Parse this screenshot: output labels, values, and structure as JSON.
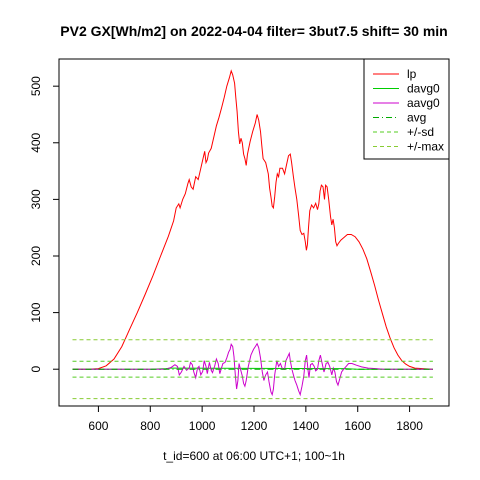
{
  "chart_data": {
    "type": "line",
    "title": "PV2 GX[Wh/m2] on 2022-04-04 filter= 3but7.5 shift= 30 min",
    "xlabel": "t_id=600 at 06:00 UTC+1; 100~1h",
    "ylabel": "",
    "xlim": [
      448,
      1952
    ],
    "ylim": [
      -65,
      548
    ],
    "x_ticks": [
      600,
      800,
      1000,
      1200,
      1400,
      1600,
      1800
    ],
    "y_ticks": [
      0,
      100,
      200,
      300,
      400,
      500
    ],
    "grid": false,
    "legend_position": "top-right",
    "legend": [
      "lp",
      "davg0",
      "aavg0",
      "avg",
      "+/-sd",
      "+/-max"
    ],
    "series": [
      {
        "name": "lp",
        "color": "#ff0000",
        "style": "solid",
        "points": [
          [
            500,
            0
          ],
          [
            560,
            0
          ],
          [
            600,
            1
          ],
          [
            630,
            6
          ],
          [
            660,
            18
          ],
          [
            690,
            40
          ],
          [
            720,
            70
          ],
          [
            750,
            100
          ],
          [
            780,
            132
          ],
          [
            810,
            165
          ],
          [
            840,
            200
          ],
          [
            870,
            235
          ],
          [
            890,
            262
          ],
          [
            900,
            285
          ],
          [
            910,
            292
          ],
          [
            915,
            285
          ],
          [
            925,
            300
          ],
          [
            935,
            310
          ],
          [
            945,
            328
          ],
          [
            950,
            335
          ],
          [
            958,
            322
          ],
          [
            965,
            318
          ],
          [
            975,
            340
          ],
          [
            985,
            335
          ],
          [
            995,
            355
          ],
          [
            1005,
            375
          ],
          [
            1010,
            385
          ],
          [
            1015,
            365
          ],
          [
            1020,
            370
          ],
          [
            1025,
            382
          ],
          [
            1035,
            390
          ],
          [
            1045,
            410
          ],
          [
            1055,
            430
          ],
          [
            1065,
            445
          ],
          [
            1075,
            462
          ],
          [
            1085,
            480
          ],
          [
            1095,
            500
          ],
          [
            1105,
            515
          ],
          [
            1112,
            527
          ],
          [
            1118,
            520
          ],
          [
            1125,
            505
          ],
          [
            1130,
            480
          ],
          [
            1135,
            455
          ],
          [
            1140,
            420
          ],
          [
            1145,
            398
          ],
          [
            1150,
            408
          ],
          [
            1155,
            400
          ],
          [
            1160,
            380
          ],
          [
            1165,
            372
          ],
          [
            1170,
            360
          ],
          [
            1175,
            380
          ],
          [
            1185,
            402
          ],
          [
            1195,
            420
          ],
          [
            1205,
            435
          ],
          [
            1212,
            450
          ],
          [
            1218,
            440
          ],
          [
            1225,
            420
          ],
          [
            1230,
            395
          ],
          [
            1235,
            372
          ],
          [
            1245,
            365
          ],
          [
            1255,
            345
          ],
          [
            1260,
            320
          ],
          [
            1265,
            305
          ],
          [
            1270,
            288
          ],
          [
            1275,
            285
          ],
          [
            1280,
            305
          ],
          [
            1285,
            330
          ],
          [
            1290,
            345
          ],
          [
            1295,
            340
          ],
          [
            1300,
            355
          ],
          [
            1310,
            355
          ],
          [
            1318,
            345
          ],
          [
            1325,
            360
          ],
          [
            1333,
            377
          ],
          [
            1340,
            380
          ],
          [
            1345,
            365
          ],
          [
            1352,
            340
          ],
          [
            1358,
            320
          ],
          [
            1365,
            300
          ],
          [
            1372,
            272
          ],
          [
            1378,
            245
          ],
          [
            1385,
            238
          ],
          [
            1392,
            240
          ],
          [
            1398,
            225
          ],
          [
            1402,
            210
          ],
          [
            1406,
            220
          ],
          [
            1410,
            250
          ],
          [
            1415,
            280
          ],
          [
            1422,
            290
          ],
          [
            1430,
            285
          ],
          [
            1438,
            293
          ],
          [
            1445,
            282
          ],
          [
            1450,
            292
          ],
          [
            1455,
            315
          ],
          [
            1460,
            325
          ],
          [
            1466,
            322
          ],
          [
            1472,
            300
          ],
          [
            1476,
            325
          ],
          [
            1482,
            322
          ],
          [
            1488,
            300
          ],
          [
            1495,
            270
          ],
          [
            1500,
            255
          ],
          [
            1505,
            265
          ],
          [
            1510,
            250
          ],
          [
            1515,
            225
          ],
          [
            1520,
            218
          ],
          [
            1525,
            222
          ],
          [
            1535,
            228
          ],
          [
            1545,
            232
          ],
          [
            1560,
            238
          ],
          [
            1575,
            238
          ],
          [
            1590,
            234
          ],
          [
            1605,
            225
          ],
          [
            1620,
            212
          ],
          [
            1635,
            195
          ],
          [
            1650,
            172
          ],
          [
            1665,
            148
          ],
          [
            1680,
            122
          ],
          [
            1695,
            98
          ],
          [
            1710,
            75
          ],
          [
            1725,
            55
          ],
          [
            1740,
            38
          ],
          [
            1755,
            25
          ],
          [
            1770,
            15
          ],
          [
            1785,
            9
          ],
          [
            1800,
            5
          ],
          [
            1820,
            2
          ],
          [
            1850,
            1
          ],
          [
            1890,
            0
          ]
        ]
      },
      {
        "name": "davg0",
        "color": "#00cd00",
        "style": "solid",
        "points": [
          [
            500,
            0
          ],
          [
            600,
            0
          ],
          [
            700,
            0
          ],
          [
            800,
            0
          ],
          [
            860,
            1
          ],
          [
            880,
            2
          ],
          [
            890,
            2
          ],
          [
            1500,
            1
          ],
          [
            1550,
            1
          ],
          [
            1600,
            0
          ],
          [
            1700,
            0
          ],
          [
            1800,
            0
          ],
          [
            1890,
            0
          ]
        ]
      },
      {
        "name": "aavg0",
        "color": "#cc00cc",
        "style": "solid",
        "points": [
          [
            500,
            0
          ],
          [
            860,
            0
          ],
          [
            880,
            3
          ],
          [
            895,
            8
          ],
          [
            905,
            5
          ],
          [
            912,
            -10
          ],
          [
            920,
            -5
          ],
          [
            930,
            5
          ],
          [
            940,
            -2
          ],
          [
            950,
            2
          ],
          [
            955,
            12
          ],
          [
            962,
            8
          ],
          [
            968,
            -5
          ],
          [
            975,
            -15
          ],
          [
            982,
            2
          ],
          [
            988,
            5
          ],
          [
            995,
            -10
          ],
          [
            1002,
            -4
          ],
          [
            1008,
            15
          ],
          [
            1015,
            5
          ],
          [
            1020,
            -8
          ],
          [
            1028,
            12
          ],
          [
            1035,
            -2
          ],
          [
            1040,
            -6
          ],
          [
            1048,
            5
          ],
          [
            1055,
            18
          ],
          [
            1062,
            10
          ],
          [
            1068,
            -8
          ],
          [
            1072,
            -2
          ],
          [
            1080,
            10
          ],
          [
            1088,
            12
          ],
          [
            1095,
            20
          ],
          [
            1102,
            30
          ],
          [
            1108,
            35
          ],
          [
            1112,
            44
          ],
          [
            1118,
            40
          ],
          [
            1123,
            22
          ],
          [
            1128,
            -10
          ],
          [
            1133,
            -35
          ],
          [
            1138,
            -20
          ],
          [
            1142,
            10
          ],
          [
            1148,
            0
          ],
          [
            1155,
            -12
          ],
          [
            1160,
            -25
          ],
          [
            1165,
            -30
          ],
          [
            1170,
            -20
          ],
          [
            1178,
            5
          ],
          [
            1188,
            25
          ],
          [
            1198,
            35
          ],
          [
            1205,
            40
          ],
          [
            1212,
            45
          ],
          [
            1218,
            38
          ],
          [
            1225,
            20
          ],
          [
            1232,
            -5
          ],
          [
            1238,
            -20
          ],
          [
            1245,
            -10
          ],
          [
            1252,
            -5
          ],
          [
            1258,
            -22
          ],
          [
            1265,
            -40
          ],
          [
            1270,
            -45
          ],
          [
            1275,
            -35
          ],
          [
            1280,
            -10
          ],
          [
            1288,
            15
          ],
          [
            1295,
            5
          ],
          [
            1302,
            10
          ],
          [
            1310,
            0
          ],
          [
            1318,
            0
          ],
          [
            1323,
            15
          ],
          [
            1330,
            22
          ],
          [
            1336,
            28
          ],
          [
            1340,
            15
          ],
          [
            1346,
            0
          ],
          [
            1352,
            -10
          ],
          [
            1358,
            -20
          ],
          [
            1365,
            -28
          ],
          [
            1372,
            -38
          ],
          [
            1378,
            -45
          ],
          [
            1385,
            -30
          ],
          [
            1392,
            -12
          ],
          [
            1398,
            15
          ],
          [
            1403,
            25
          ],
          [
            1408,
            0
          ],
          [
            1412,
            -15
          ],
          [
            1418,
            8
          ],
          [
            1425,
            10
          ],
          [
            1432,
            5
          ],
          [
            1438,
            -3
          ],
          [
            1445,
            0
          ],
          [
            1450,
            15
          ],
          [
            1456,
            25
          ],
          [
            1462,
            12
          ],
          [
            1470,
            -5
          ],
          [
            1478,
            10
          ],
          [
            1485,
            12
          ],
          [
            1492,
            5
          ],
          [
            1500,
            -10
          ],
          [
            1506,
            2
          ],
          [
            1512,
            -5
          ],
          [
            1518,
            -22
          ],
          [
            1524,
            -28
          ],
          [
            1530,
            -18
          ],
          [
            1538,
            -5
          ],
          [
            1546,
            0
          ],
          [
            1555,
            5
          ],
          [
            1565,
            10
          ],
          [
            1578,
            10
          ],
          [
            1595,
            7
          ],
          [
            1615,
            4
          ],
          [
            1640,
            2
          ],
          [
            1670,
            1
          ],
          [
            1700,
            0
          ],
          [
            1800,
            0
          ],
          [
            1890,
            0
          ]
        ]
      },
      {
        "name": "avg",
        "color": "#00aa00",
        "style": "dashdot",
        "points": [
          [
            500,
            0
          ],
          [
            1890,
            0
          ]
        ]
      },
      {
        "name": "+/-sd",
        "color": "#55cc22",
        "style": "dashed",
        "points": [
          [
            500,
            14
          ],
          [
            1890,
            14
          ]
        ]
      },
      {
        "name": "+/-sd",
        "color": "#55cc22",
        "style": "dashed",
        "points": [
          [
            500,
            -14
          ],
          [
            1890,
            -14
          ]
        ]
      },
      {
        "name": "+/-max",
        "color": "#88cc33",
        "style": "dashed",
        "points": [
          [
            500,
            52
          ],
          [
            1890,
            52
          ]
        ]
      },
      {
        "name": "+/-max",
        "color": "#88cc33",
        "style": "dashed",
        "points": [
          [
            500,
            -52
          ],
          [
            1890,
            -52
          ]
        ]
      }
    ]
  }
}
